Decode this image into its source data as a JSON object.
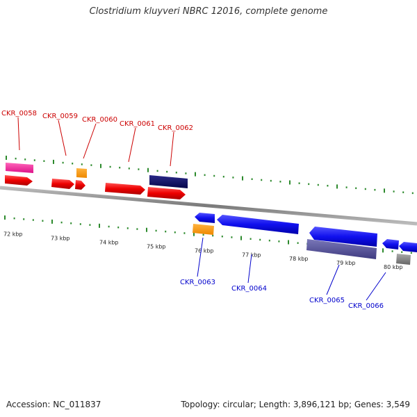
{
  "title": "Clostridium kluyveri NBRC 12016, complete genome",
  "footer": {
    "accession": "Accession: NC_011837",
    "stats": "Topology: circular; Length: 3,896,121 bp; Genes: 3,549"
  },
  "colors": {
    "forward_label": "#cc0000",
    "reverse_label": "#0000cc",
    "tick": "#2d8a2d",
    "backbone": "#888888"
  },
  "kbp_labels": [
    "72 kbp",
    "73 kbp",
    "74 kbp",
    "75 kbp",
    "76 kbp",
    "77 kbp",
    "78 kbp",
    "79 kbp",
    "80 kbp"
  ],
  "forward_labels": [
    "CKR_0058",
    "CKR_0059",
    "CKR_0060",
    "CKR_0061",
    "CKR_0062"
  ],
  "reverse_labels": [
    "CKR_0063",
    "CKR_0064",
    "CKR_0065",
    "CKR_0066"
  ]
}
